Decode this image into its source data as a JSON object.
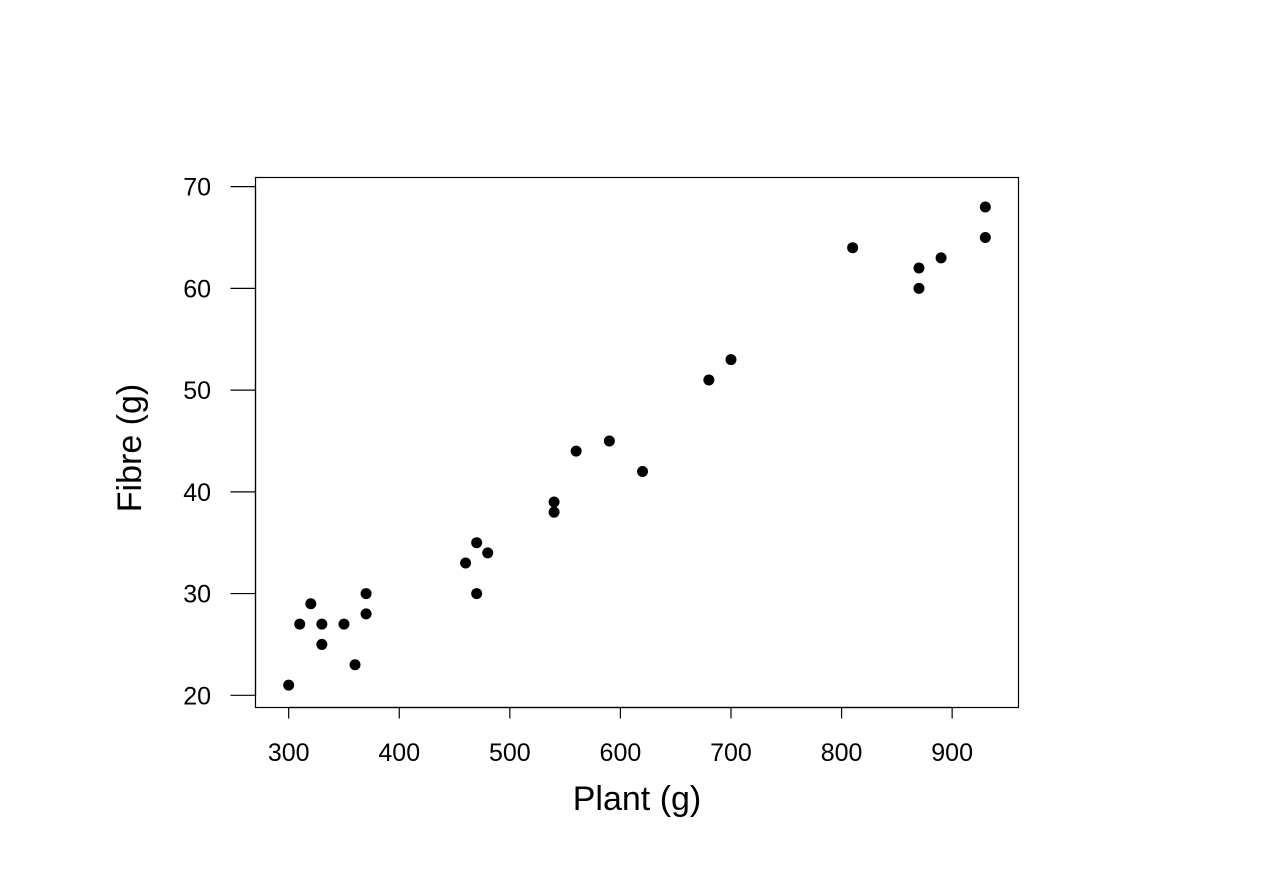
{
  "chart_data": {
    "type": "scatter",
    "title": "",
    "xlabel": "Plant (g)",
    "ylabel": "Fibre (g)",
    "xlim": [
      270,
      960
    ],
    "ylim": [
      18.8,
      70.9
    ],
    "xticks": [
      300,
      400,
      500,
      600,
      700,
      800,
      900
    ],
    "yticks": [
      20,
      30,
      40,
      50,
      60,
      70
    ],
    "xtick_labels": [
      "300",
      "400",
      "500",
      "600",
      "700",
      "800",
      "900"
    ],
    "ytick_labels": [
      "20",
      "30",
      "40",
      "50",
      "60",
      "70"
    ],
    "grid": false,
    "legend": "none",
    "marker_color": "#000000",
    "points": [
      {
        "x": 300,
        "y": 21
      },
      {
        "x": 310,
        "y": 27
      },
      {
        "x": 320,
        "y": 29
      },
      {
        "x": 330,
        "y": 27
      },
      {
        "x": 330,
        "y": 25
      },
      {
        "x": 350,
        "y": 27
      },
      {
        "x": 360,
        "y": 23
      },
      {
        "x": 370,
        "y": 30
      },
      {
        "x": 370,
        "y": 28
      },
      {
        "x": 460,
        "y": 33
      },
      {
        "x": 470,
        "y": 35
      },
      {
        "x": 470,
        "y": 30
      },
      {
        "x": 480,
        "y": 34
      },
      {
        "x": 540,
        "y": 39
      },
      {
        "x": 540,
        "y": 38
      },
      {
        "x": 560,
        "y": 44
      },
      {
        "x": 590,
        "y": 45
      },
      {
        "x": 620,
        "y": 42
      },
      {
        "x": 680,
        "y": 51
      },
      {
        "x": 700,
        "y": 53
      },
      {
        "x": 810,
        "y": 64
      },
      {
        "x": 870,
        "y": 62
      },
      {
        "x": 870,
        "y": 60
      },
      {
        "x": 890,
        "y": 63
      },
      {
        "x": 930,
        "y": 68
      },
      {
        "x": 930,
        "y": 65
      }
    ]
  }
}
